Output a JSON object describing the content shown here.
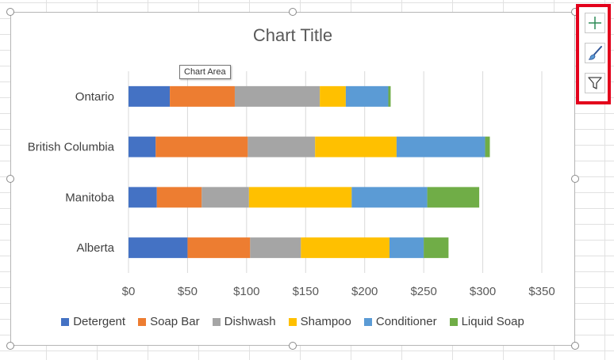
{
  "chart_data": {
    "type": "bar",
    "orientation": "horizontal",
    "stacked": true,
    "title": "Chart Title",
    "categories": [
      "Alberta",
      "Manitoba",
      "British Columbia",
      "Ontario"
    ],
    "series": [
      {
        "name": "Detergent",
        "color": "#4472c4",
        "values": [
          50,
          24,
          23,
          35
        ]
      },
      {
        "name": "Soap Bar",
        "color": "#ed7d31",
        "values": [
          53,
          38,
          78,
          55
        ]
      },
      {
        "name": "Dishwash",
        "color": "#a5a5a5",
        "values": [
          43,
          40,
          57,
          72
        ]
      },
      {
        "name": "Shampoo",
        "color": "#ffc000",
        "values": [
          75,
          87,
          69,
          22
        ]
      },
      {
        "name": "Conditioner",
        "color": "#5b9bd5",
        "values": [
          29,
          64,
          75,
          36
        ]
      },
      {
        "name": "Liquid Soap",
        "color": "#70ad47",
        "values": [
          21,
          44,
          4,
          2
        ]
      }
    ],
    "xlim": [
      0,
      350
    ],
    "xticks": [
      0,
      50,
      100,
      150,
      200,
      250,
      300,
      350
    ],
    "xtick_labels": [
      "$0",
      "$50",
      "$100",
      "$150",
      "$200",
      "$250",
      "$300",
      "$350"
    ],
    "xlabel": "",
    "ylabel": "",
    "grid": "vertical",
    "legend_position": "bottom"
  },
  "tooltip": "Chart Area",
  "side_buttons": [
    {
      "icon": "plus-icon",
      "name": "chart-elements-button"
    },
    {
      "icon": "brush-icon",
      "name": "chart-styles-button"
    },
    {
      "icon": "filter-icon",
      "name": "chart-filters-button"
    }
  ],
  "colors": {
    "highlight_border": "#e3001b"
  }
}
